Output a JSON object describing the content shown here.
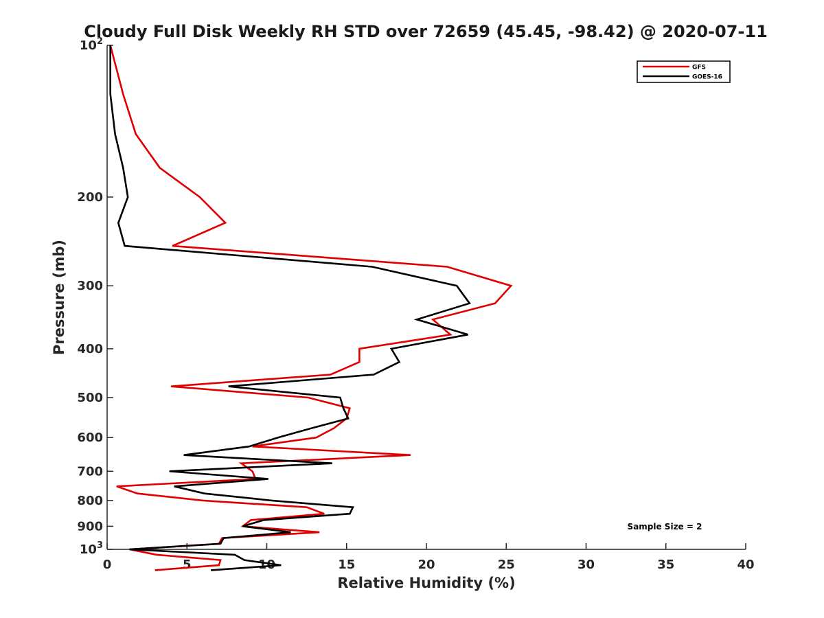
{
  "chart_data": {
    "type": "line",
    "title": "Cloudy Full Disk Weekly RH STD over 72659 (45.45, -98.42) @ 2020-07-11",
    "xlabel": "Relative Humidity (%)",
    "ylabel": "Pressure (mb)",
    "xlim": [
      0,
      40
    ],
    "ylim": [
      100,
      1000
    ],
    "y_scale": "log",
    "y_direction": "reversed",
    "grid": false,
    "legend_position": "top-right",
    "x_ticks": [
      "0",
      "5",
      "10",
      "15",
      "20",
      "25",
      "30",
      "35",
      "40"
    ],
    "y_ticks": [
      {
        "value": 100,
        "base": "10",
        "exp": "2"
      },
      {
        "value": 200,
        "label": "200"
      },
      {
        "value": 300,
        "label": "300"
      },
      {
        "value": 400,
        "label": "400"
      },
      {
        "value": 500,
        "label": "500"
      },
      {
        "value": 600,
        "label": "600"
      },
      {
        "value": 700,
        "label": "700"
      },
      {
        "value": 800,
        "label": "800"
      },
      {
        "value": 900,
        "label": "900"
      },
      {
        "value": 1000,
        "base": "10",
        "exp": "3"
      }
    ],
    "series": [
      {
        "name": "GFS",
        "color": "#e00000",
        "points": [
          [
            0.2,
            100
          ],
          [
            1.0,
            125
          ],
          [
            1.8,
            150
          ],
          [
            3.3,
            175
          ],
          [
            5.8,
            200
          ],
          [
            7.4,
            225
          ],
          [
            4.1,
            250
          ],
          [
            21.3,
            275
          ],
          [
            25.3,
            300
          ],
          [
            24.3,
            325
          ],
          [
            20.4,
            350
          ],
          [
            21.5,
            375
          ],
          [
            15.8,
            400
          ],
          [
            15.8,
            425
          ],
          [
            14.0,
            450
          ],
          [
            4.0,
            475
          ],
          [
            12.6,
            500
          ],
          [
            15.2,
            525
          ],
          [
            15.0,
            550
          ],
          [
            14.2,
            575
          ],
          [
            13.1,
            600
          ],
          [
            9.1,
            625
          ],
          [
            19.0,
            650
          ],
          [
            8.4,
            675
          ],
          [
            9.1,
            700
          ],
          [
            9.3,
            725
          ],
          [
            0.6,
            750
          ],
          [
            1.9,
            775
          ],
          [
            6.0,
            800
          ],
          [
            12.5,
            825
          ],
          [
            13.6,
            850
          ],
          [
            9.0,
            875
          ],
          [
            8.5,
            900
          ],
          [
            13.3,
            925
          ],
          [
            7.2,
            950
          ],
          [
            7.0,
            975
          ],
          [
            1.4,
            1000
          ],
          [
            3.1,
            1025
          ],
          [
            7.1,
            1050
          ],
          [
            7.0,
            1075
          ],
          [
            3.0,
            1100
          ]
        ]
      },
      {
        "name": "GOES-16",
        "color": "#000000",
        "points": [
          [
            0.2,
            100
          ],
          [
            0.2,
            125
          ],
          [
            0.5,
            150
          ],
          [
            1.0,
            175
          ],
          [
            1.3,
            200
          ],
          [
            0.7,
            225
          ],
          [
            1.1,
            250
          ],
          [
            16.6,
            275
          ],
          [
            21.9,
            300
          ],
          [
            22.7,
            325
          ],
          [
            19.4,
            350
          ],
          [
            22.6,
            375
          ],
          [
            17.8,
            400
          ],
          [
            18.3,
            425
          ],
          [
            16.7,
            450
          ],
          [
            7.6,
            475
          ],
          [
            14.6,
            500
          ],
          [
            14.8,
            525
          ],
          [
            15.1,
            550
          ],
          [
            12.8,
            575
          ],
          [
            10.7,
            600
          ],
          [
            8.9,
            625
          ],
          [
            4.8,
            650
          ],
          [
            14.1,
            675
          ],
          [
            3.9,
            700
          ],
          [
            10.1,
            725
          ],
          [
            4.2,
            750
          ],
          [
            6.1,
            775
          ],
          [
            10.3,
            800
          ],
          [
            15.4,
            825
          ],
          [
            15.2,
            850
          ],
          [
            9.8,
            875
          ],
          [
            8.5,
            900
          ],
          [
            11.5,
            925
          ],
          [
            7.3,
            950
          ],
          [
            7.1,
            975
          ],
          [
            1.4,
            1000
          ],
          [
            8.0,
            1025
          ],
          [
            8.6,
            1050
          ],
          [
            10.9,
            1075
          ],
          [
            6.5,
            1100
          ]
        ]
      }
    ],
    "annotation": "Sample Size = 2"
  }
}
